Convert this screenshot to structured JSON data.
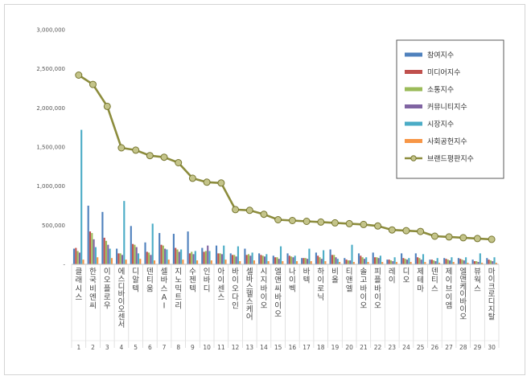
{
  "chart_data": {
    "type": "bar",
    "title": "",
    "xlabel": "",
    "ylabel": "",
    "ylim": [
      0,
      3000000
    ],
    "y_ticks": [
      "3,000,000",
      "2,500,000",
      "2,000,000",
      "1,500,000",
      "1,000,000",
      "500,000",
      "-"
    ],
    "grid": false,
    "legend_position": "top-right",
    "categories": [
      "클래시스",
      "한국비엔씨",
      "이오플로우",
      "에스디바이오센서",
      "디알텍",
      "덴티움",
      "셀바스AI",
      "지노믹트리",
      "수젠텍",
      "인바디",
      "아이센스",
      "바이오다인",
      "셀바스헬스케어",
      "시지바이오",
      "엘앤씨바이오",
      "나이벡",
      "바텍",
      "하이로닉",
      "비올",
      "티앤엘",
      "솔고바이오",
      "피플바이오",
      "레이",
      "디오",
      "제테마",
      "덴티스",
      "제이브이엠",
      "엘앤케이바이오",
      "뷰웍스",
      "마이크로디지탈"
    ],
    "ranks": [
      "1",
      "2",
      "3",
      "4",
      "5",
      "6",
      "7",
      "8",
      "9",
      "10",
      "11",
      "12",
      "13",
      "14",
      "15",
      "16",
      "17",
      "18",
      "19",
      "20",
      "21",
      "22",
      "23",
      "24",
      "25",
      "26",
      "27",
      "28",
      "29",
      "30"
    ],
    "series": [
      {
        "name": "참여지수",
        "color": "#4f81bd",
        "type": "bar",
        "values": [
          200000,
          750000,
          670000,
          200000,
          490000,
          280000,
          400000,
          390000,
          420000,
          210000,
          240000,
          140000,
          200000,
          140000,
          110000,
          140000,
          80000,
          150000,
          190000,
          80000,
          140000,
          150000,
          60000,
          140000,
          140000,
          60000,
          80000,
          80000,
          60000,
          80000
        ]
      },
      {
        "name": "미디어지수",
        "color": "#c0504d",
        "type": "bar",
        "values": [
          210000,
          420000,
          340000,
          140000,
          260000,
          160000,
          250000,
          210000,
          140000,
          160000,
          140000,
          120000,
          120000,
          120000,
          90000,
          110000,
          80000,
          110000,
          120000,
          60000,
          110000,
          90000,
          60000,
          80000,
          90000,
          60000,
          70000,
          70000,
          40000,
          60000
        ]
      },
      {
        "name": "소통지수",
        "color": "#9bbb59",
        "type": "bar",
        "values": [
          170000,
          400000,
          300000,
          140000,
          250000,
          150000,
          240000,
          190000,
          160000,
          170000,
          140000,
          120000,
          130000,
          110000,
          90000,
          100000,
          80000,
          90000,
          120000,
          50000,
          90000,
          90000,
          50000,
          70000,
          80000,
          50000,
          60000,
          60000,
          40000,
          50000
        ]
      },
      {
        "name": "커뮤니티지수",
        "color": "#8064a2",
        "type": "bar",
        "values": [
          150000,
          320000,
          250000,
          120000,
          220000,
          120000,
          200000,
          160000,
          130000,
          240000,
          130000,
          100000,
          110000,
          100000,
          70000,
          90000,
          70000,
          70000,
          90000,
          50000,
          70000,
          80000,
          40000,
          60000,
          60000,
          40000,
          50000,
          50000,
          30000,
          40000
        ]
      },
      {
        "name": "시장지수",
        "color": "#4bacc6",
        "type": "bar",
        "values": [
          1720000,
          220000,
          200000,
          810000,
          140000,
          520000,
          190000,
          190000,
          170000,
          170000,
          240000,
          230000,
          150000,
          130000,
          230000,
          110000,
          200000,
          180000,
          70000,
          250000,
          90000,
          110000,
          90000,
          80000,
          130000,
          80000,
          90000,
          90000,
          140000,
          90000
        ]
      },
      {
        "name": "사회공헌지수",
        "color": "#f79646",
        "type": "bar",
        "values": [
          60000,
          90000,
          80000,
          60000,
          70000,
          50000,
          60000,
          60000,
          50000,
          50000,
          60000,
          40000,
          50000,
          40000,
          40000,
          40000,
          40000,
          40000,
          30000,
          30000,
          30000,
          30000,
          30000,
          30000,
          30000,
          20000,
          30000,
          20000,
          20000,
          20000
        ]
      },
      {
        "name": "브랜드평판지수",
        "color": "#8c8c3c",
        "type": "line",
        "values": [
          2420000,
          2300000,
          2020000,
          1490000,
          1460000,
          1390000,
          1370000,
          1300000,
          1100000,
          1050000,
          1040000,
          700000,
          690000,
          640000,
          570000,
          560000,
          550000,
          540000,
          530000,
          520000,
          510000,
          490000,
          440000,
          430000,
          420000,
          360000,
          350000,
          340000,
          330000,
          320000
        ]
      }
    ]
  }
}
